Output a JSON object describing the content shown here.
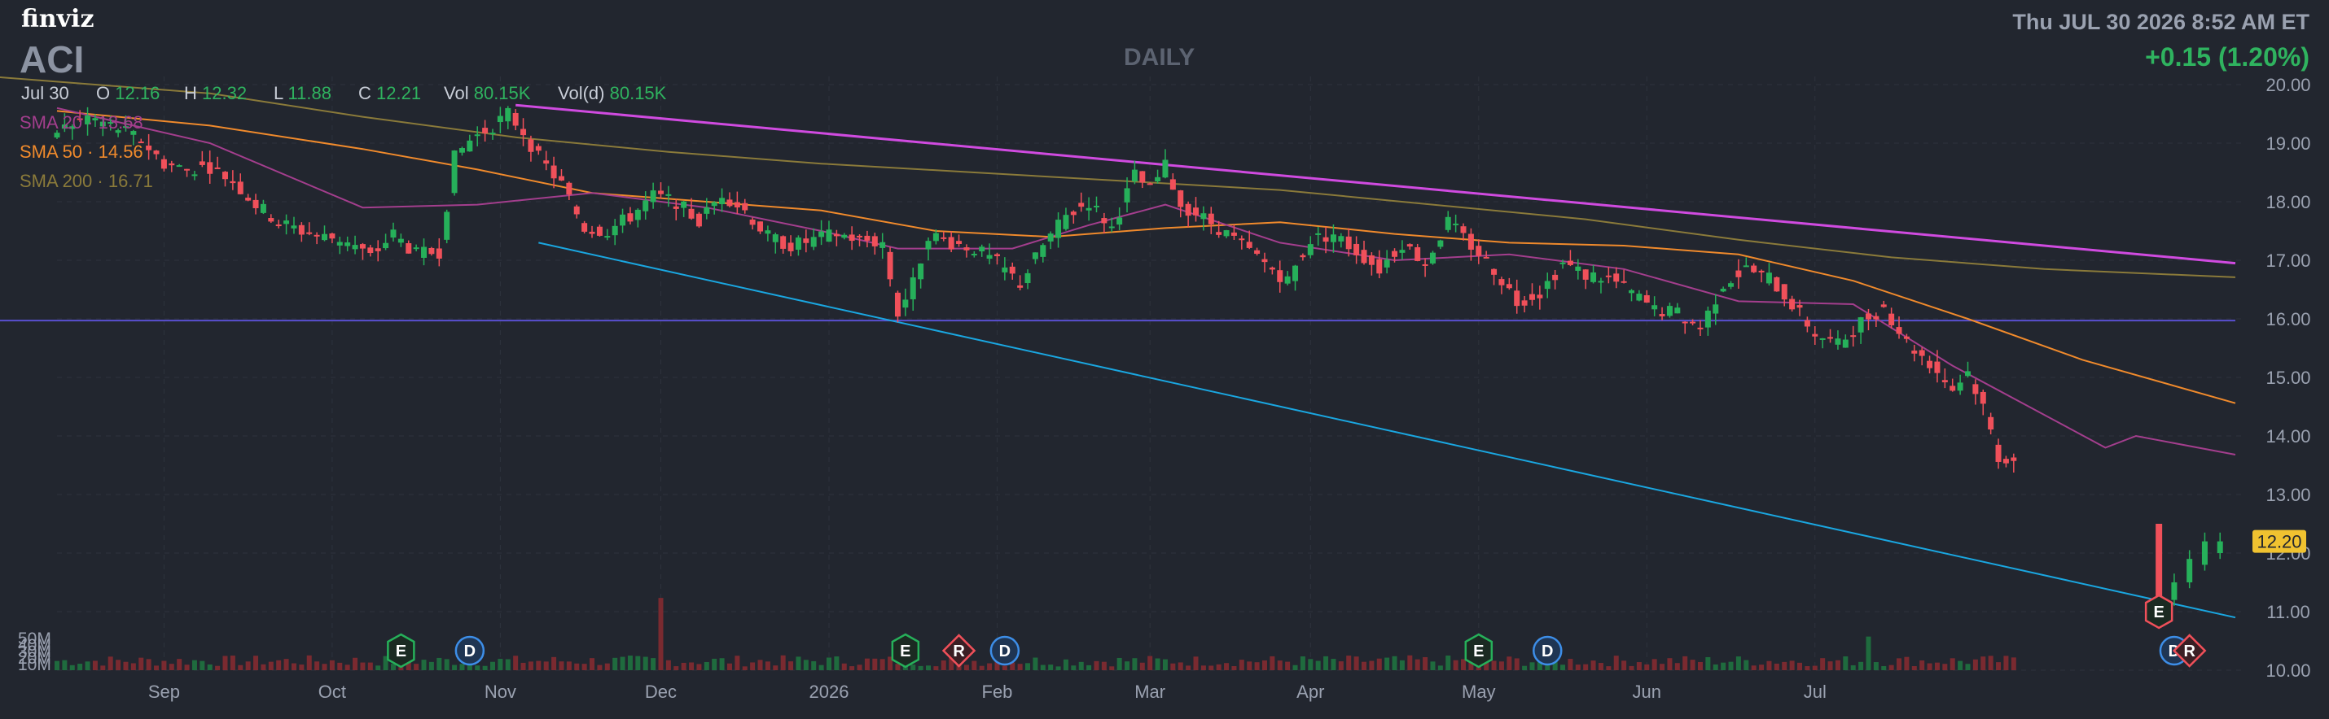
{
  "header": {
    "brand": "finviz",
    "ticker": "ACI",
    "timeframe": "DAILY",
    "datetime": "Thu JUL 30 2026 8:52 AM ET",
    "change": "+0.15 (1.20%)"
  },
  "ohlc": {
    "date": "Jul 30",
    "o_label": "O",
    "o": "12.16",
    "h_label": "H",
    "h": "12.32",
    "l_label": "L",
    "l": "11.88",
    "c_label": "C",
    "c": "12.21",
    "vol_label": "Vol",
    "vol": "80.15K",
    "vold_label": "Vol(d)",
    "vold": "80.15K"
  },
  "legend": [
    {
      "label": "SMA 20",
      "value": "13.68",
      "color": "#a33e8d"
    },
    {
      "label": "SMA 50",
      "value": "14.56",
      "color": "#f08a2c"
    },
    {
      "label": "SMA 200",
      "value": "16.71",
      "color": "#8a7a3a"
    }
  ],
  "colors": {
    "up": "#26b05a",
    "down": "#f0505a",
    "vol_up": "#1f6b3e",
    "vol_down": "#7a2a30",
    "trend_top": "#d04be0",
    "trend_bottom": "#1aa6e0",
    "support": "#5a4fd0",
    "price_tag_bg": "#f0c230"
  },
  "chart_data": {
    "type": "candlestick",
    "ylim": [
      10,
      20
    ],
    "yticks": [
      "20.00",
      "19.00",
      "18.00",
      "17.00",
      "16.00",
      "15.00",
      "14.00",
      "13.00",
      "12.00",
      "11.00",
      "10.00"
    ],
    "ytick_values": [
      20,
      19,
      18,
      17,
      16,
      15,
      14,
      13,
      12,
      11,
      10
    ],
    "vol_ticks": [
      "50M",
      "40M",
      "30M",
      "20M",
      "10M"
    ],
    "vol_tick_values": [
      50,
      40,
      30,
      20,
      10
    ],
    "vol_max_m": 62,
    "xaxis_labels": [
      {
        "label": "Sep",
        "d": 14
      },
      {
        "label": "Oct",
        "d": 36
      },
      {
        "label": "Nov",
        "d": 58
      },
      {
        "label": "Dec",
        "d": 79
      },
      {
        "label": "2026",
        "d": 101
      },
      {
        "label": "Feb",
        "d": 123
      },
      {
        "label": "Mar",
        "d": 143
      },
      {
        "label": "Apr",
        "d": 164
      },
      {
        "label": "May",
        "d": 186
      },
      {
        "label": "Jun",
        "d": 208
      },
      {
        "label": "Jul",
        "d": 230
      }
    ],
    "last_price": "12.20",
    "last_price_value": 12.2,
    "days": 256,
    "closes": [
      [
        0,
        19.2
      ],
      [
        4,
        19.45
      ],
      [
        8,
        19.25
      ],
      [
        11,
        19.05
      ],
      [
        14,
        18.65
      ],
      [
        17,
        18.55
      ],
      [
        20,
        18.6
      ],
      [
        23,
        18.35
      ],
      [
        26,
        17.95
      ],
      [
        29,
        17.65
      ],
      [
        32,
        17.5
      ],
      [
        35,
        17.4
      ],
      [
        38,
        17.35
      ],
      [
        41,
        17.05
      ],
      [
        44,
        17.45
      ],
      [
        47,
        17.1
      ],
      [
        50,
        17.15
      ],
      [
        52,
        18.75
      ],
      [
        54,
        19.05
      ],
      [
        57,
        19.3
      ],
      [
        59,
        19.5
      ],
      [
        61,
        19.2
      ],
      [
        63,
        18.75
      ],
      [
        66,
        18.3
      ],
      [
        69,
        17.55
      ],
      [
        72,
        17.5
      ],
      [
        75,
        17.75
      ],
      [
        78,
        18.1
      ],
      [
        81,
        18.0
      ],
      [
        84,
        17.65
      ],
      [
        87,
        18.15
      ],
      [
        90,
        17.85
      ],
      [
        93,
        17.4
      ],
      [
        96,
        17.25
      ],
      [
        99,
        17.35
      ],
      [
        102,
        17.45
      ],
      [
        105,
        17.35
      ],
      [
        108,
        17.3
      ],
      [
        110,
        16.1
      ],
      [
        112,
        16.6
      ],
      [
        114,
        17.45
      ],
      [
        117,
        17.3
      ],
      [
        120,
        17.2
      ],
      [
        123,
        16.95
      ],
      [
        126,
        16.6
      ],
      [
        129,
        17.25
      ],
      [
        132,
        17.75
      ],
      [
        135,
        18.0
      ],
      [
        138,
        17.55
      ],
      [
        141,
        18.45
      ],
      [
        143,
        18.2
      ],
      [
        145,
        18.6
      ],
      [
        147,
        17.95
      ],
      [
        149,
        17.8
      ],
      [
        152,
        17.55
      ],
      [
        155,
        17.25
      ],
      [
        158,
        16.95
      ],
      [
        161,
        16.65
      ],
      [
        164,
        17.35
      ],
      [
        167,
        17.45
      ],
      [
        170,
        17.15
      ],
      [
        173,
        16.85
      ],
      [
        176,
        17.3
      ],
      [
        179,
        16.95
      ],
      [
        182,
        17.65
      ],
      [
        185,
        17.25
      ],
      [
        188,
        16.85
      ],
      [
        191,
        16.3
      ],
      [
        194,
        16.45
      ],
      [
        197,
        16.95
      ],
      [
        200,
        16.75
      ],
      [
        203,
        16.7
      ],
      [
        206,
        16.45
      ],
      [
        209,
        16.15
      ],
      [
        212,
        16.1
      ],
      [
        215,
        15.85
      ],
      [
        218,
        16.6
      ],
      [
        221,
        16.85
      ],
      [
        224,
        16.7
      ],
      [
        227,
        16.25
      ],
      [
        230,
        15.75
      ],
      [
        233,
        15.55
      ],
      [
        236,
        15.95
      ],
      [
        239,
        16.2
      ],
      [
        242,
        15.6
      ],
      [
        245,
        15.25
      ],
      [
        248,
        14.8
      ],
      [
        250,
        15.1
      ],
      [
        252,
        14.5
      ],
      [
        254,
        13.65
      ],
      [
        256,
        13.6
      ]
    ],
    "sma20": [
      [
        0,
        19.6
      ],
      [
        20,
        19.0
      ],
      [
        40,
        17.9
      ],
      [
        55,
        17.95
      ],
      [
        70,
        18.15
      ],
      [
        85,
        17.9
      ],
      [
        100,
        17.5
      ],
      [
        110,
        17.2
      ],
      [
        125,
        17.2
      ],
      [
        135,
        17.6
      ],
      [
        145,
        17.95
      ],
      [
        160,
        17.3
      ],
      [
        175,
        17.0
      ],
      [
        190,
        17.1
      ],
      [
        205,
        16.85
      ],
      [
        220,
        16.3
      ],
      [
        235,
        16.25
      ],
      [
        248,
        15.2
      ],
      [
        258,
        14.5
      ],
      [
        268,
        13.8
      ],
      [
        272,
        14.0
      ],
      [
        285,
        13.68
      ]
    ],
    "sma50": [
      [
        0,
        19.55
      ],
      [
        20,
        19.3
      ],
      [
        40,
        18.9
      ],
      [
        55,
        18.55
      ],
      [
        70,
        18.15
      ],
      [
        85,
        18.0
      ],
      [
        100,
        17.85
      ],
      [
        115,
        17.5
      ],
      [
        130,
        17.4
      ],
      [
        145,
        17.55
      ],
      [
        160,
        17.65
      ],
      [
        175,
        17.45
      ],
      [
        190,
        17.3
      ],
      [
        205,
        17.25
      ],
      [
        220,
        17.1
      ],
      [
        235,
        16.65
      ],
      [
        250,
        16.0
      ],
      [
        265,
        15.3
      ],
      [
        285,
        14.56
      ]
    ],
    "sma200": [
      [
        -25,
        20.3
      ],
      [
        20,
        19.85
      ],
      [
        40,
        19.45
      ],
      [
        60,
        19.1
      ],
      [
        80,
        18.85
      ],
      [
        100,
        18.65
      ],
      [
        120,
        18.5
      ],
      [
        140,
        18.35
      ],
      [
        160,
        18.2
      ],
      [
        180,
        17.95
      ],
      [
        200,
        17.7
      ],
      [
        220,
        17.35
      ],
      [
        240,
        17.05
      ],
      [
        260,
        16.85
      ],
      [
        285,
        16.71
      ]
    ],
    "trendlines": [
      {
        "name": "resistance",
        "d1": 60,
        "p1": 19.65,
        "d2": 285,
        "p2": 16.95
      },
      {
        "name": "support-channel",
        "d1": 63,
        "p1": 17.3,
        "d2": 285,
        "p2": 10.9
      },
      {
        "name": "horizontal",
        "d1": -12,
        "p1": 15.97,
        "d2": 285,
        "p2": 15.97
      }
    ],
    "events": [
      {
        "type": "E",
        "d": 45
      },
      {
        "type": "D",
        "d": 54
      },
      {
        "type": "E",
        "d": 111
      },
      {
        "type": "R",
        "d": 118
      },
      {
        "type": "D",
        "d": 124
      },
      {
        "type": "E",
        "d": 186
      },
      {
        "type": "D",
        "d": 195
      },
      {
        "type": "E",
        "d": 275
      },
      {
        "type": "D",
        "d": 277
      },
      {
        "type": "R",
        "d": 279
      }
    ],
    "earnings_drop": {
      "d": 275,
      "open": 12.5,
      "close": 11.0
    }
  }
}
